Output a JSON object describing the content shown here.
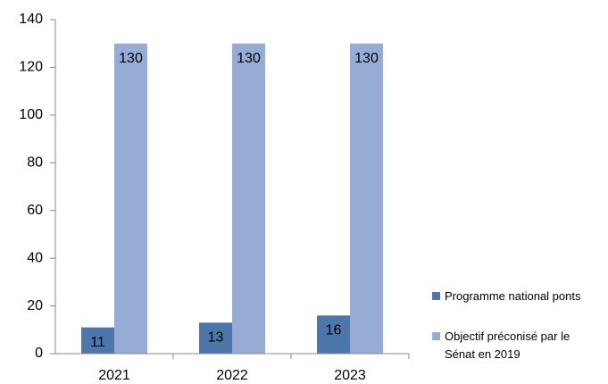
{
  "chart_data": {
    "type": "bar",
    "categories": [
      "2021",
      "2022",
      "2023"
    ],
    "series": [
      {
        "name": "Programme national ponts",
        "color": "#4d77ab",
        "values": [
          11,
          13,
          16
        ]
      },
      {
        "name": "Objectif préconisé par le Sénat en 2019",
        "color": "#97acd4",
        "values": [
          130,
          130,
          130
        ]
      }
    ],
    "ylim": [
      0,
      140
    ],
    "yticks": [
      0,
      20,
      40,
      60,
      80,
      100,
      120,
      140
    ],
    "grid": false,
    "legend": "right"
  }
}
